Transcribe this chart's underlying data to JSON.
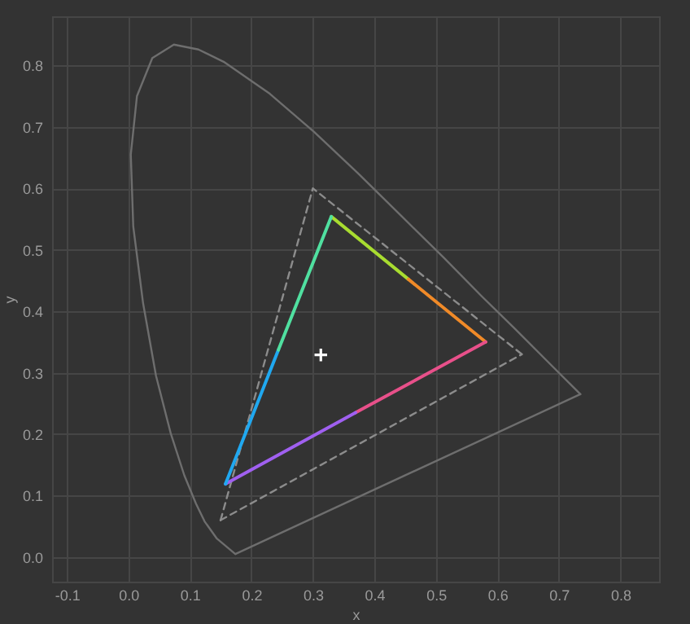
{
  "chart_data": {
    "type": "line",
    "xlabel": "x",
    "ylabel": "y",
    "xlim": [
      -0.124,
      0.863
    ],
    "ylim": [
      -0.04,
      0.88
    ],
    "xticks": [
      -0.1,
      {
        "value": 0,
        "label": "0.0"
      },
      0.1,
      0.2,
      0.3,
      0.4,
      0.5,
      0.6,
      0.7,
      0.8
    ],
    "yticks": [
      {
        "value": 0,
        "label": "0.0"
      },
      0.1,
      0.2,
      0.3,
      0.4,
      0.5,
      0.6,
      0.7,
      0.8
    ],
    "grid": true,
    "marker": "none",
    "series": [
      {
        "type": "line",
        "color": "#6e6e6e",
        "line_style": "solid",
        "x": [
          0.174,
          0.144,
          0.124,
          0.11,
          0.091,
          0.069,
          0.045,
          0.024,
          0.008,
          0.004,
          0.014,
          0.039,
          0.074,
          0.114,
          0.155,
          0.23,
          0.302,
          0.373,
          0.444,
          0.513,
          0.575,
          0.627,
          0.692,
          0.735
        ],
        "values": [
          0.005,
          0.03,
          0.058,
          0.087,
          0.133,
          0.201,
          0.295,
          0.413,
          0.538,
          0.655,
          0.75,
          0.812,
          0.834,
          0.826,
          0.806,
          0.754,
          0.692,
          0.625,
          0.555,
          0.487,
          0.424,
          0.373,
          0.308,
          0.265
        ]
      },
      {
        "type": "line",
        "color": "#6e6e6e",
        "line_style": "solid",
        "x": [
          0.174,
          0.735
        ],
        "values": [
          0.005,
          0.265
        ]
      },
      {
        "type": "line",
        "color": "#8c8c8c",
        "line_style": "dashed",
        "x": [
          0.15,
          0.3,
          0.64
        ],
        "values": [
          0.06,
          0.6,
          0.33
        ]
      },
      {
        "type": "line",
        "color": "#8c8c8c",
        "line_style": "dashed",
        "x": [
          0.15,
          0.64
        ],
        "values": [
          0.06,
          0.33
        ]
      },
      {
        "type": "line",
        "color": "#a8dc30",
        "line_style": "solid",
        "x": [
          0.33,
          0.4555
        ],
        "values": [
          0.554,
          0.452
        ]
      },
      {
        "type": "line",
        "color": "#f08a28",
        "line_style": "solid",
        "x": [
          0.4555,
          0.581
        ],
        "values": [
          0.452,
          0.35
        ]
      },
      {
        "type": "line",
        "color": "#e8508a",
        "line_style": "solid",
        "x": [
          0.581,
          0.3695
        ],
        "values": [
          0.35,
          0.235
        ]
      },
      {
        "type": "line",
        "color": "#a060f0",
        "line_style": "solid",
        "x": [
          0.3695,
          0.158
        ],
        "values": [
          0.235,
          0.119
        ]
      },
      {
        "type": "line",
        "color": "#20a8f0",
        "line_style": "solid",
        "x": [
          0.158,
          0.244
        ],
        "values": [
          0.119,
          0.337
        ]
      },
      {
        "type": "line",
        "color": "#50e0a0",
        "line_style": "solid",
        "x": [
          0.244,
          0.33
        ],
        "values": [
          0.337,
          0.554
        ]
      },
      {
        "type": "scatter",
        "color": "#ffffff",
        "marker": "cross",
        "x": [
          0.313
        ],
        "values": [
          0.329
        ]
      }
    ]
  }
}
